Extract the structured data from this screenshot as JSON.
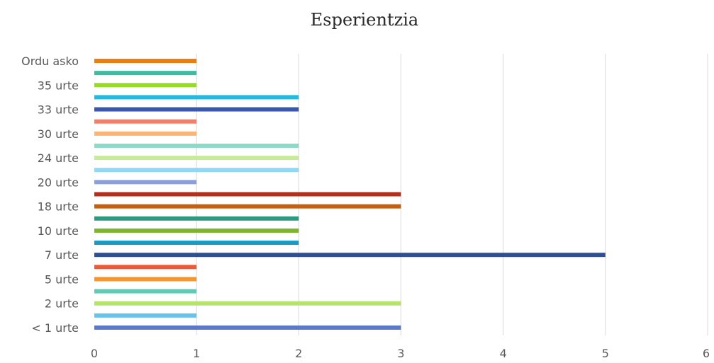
{
  "chart_data": {
    "type": "bar",
    "orientation": "horizontal",
    "title": "Esperientzia",
    "xlim": [
      0,
      6
    ],
    "xticks": [
      0,
      1,
      2,
      3,
      4,
      5,
      6
    ],
    "grid": true,
    "categories": [
      "< 1 urte",
      "",
      "2 urte",
      "",
      "5 urte",
      "",
      "7 urte",
      "",
      "10 urte",
      "",
      "18 urte",
      "",
      "20 urte",
      "",
      "24 urte",
      "",
      "30 urte",
      "",
      "33 urte",
      "",
      "35 urte",
      "",
      "Ordu asko"
    ],
    "values": [
      3,
      1,
      3,
      1,
      1,
      1,
      5,
      2,
      2,
      2,
      3,
      3,
      1,
      2,
      2,
      2,
      1,
      1,
      2,
      2,
      1,
      1,
      1
    ],
    "colors": [
      "#5b78c9",
      "#68c3ea",
      "#b5e36b",
      "#5ecbb4",
      "#f6962f",
      "#ef5a35",
      "#2e4f94",
      "#1a9bc6",
      "#7db52b",
      "#2f9a80",
      "#c75f0f",
      "#b3301c",
      "#8a9fdc",
      "#92d8f5",
      "#c8ea99",
      "#8edac8",
      "#f9b476",
      "#f47f68",
      "#3b58a8",
      "#1ebbe5",
      "#99d92a",
      "#3cbca0",
      "#ee7d0f"
    ]
  }
}
